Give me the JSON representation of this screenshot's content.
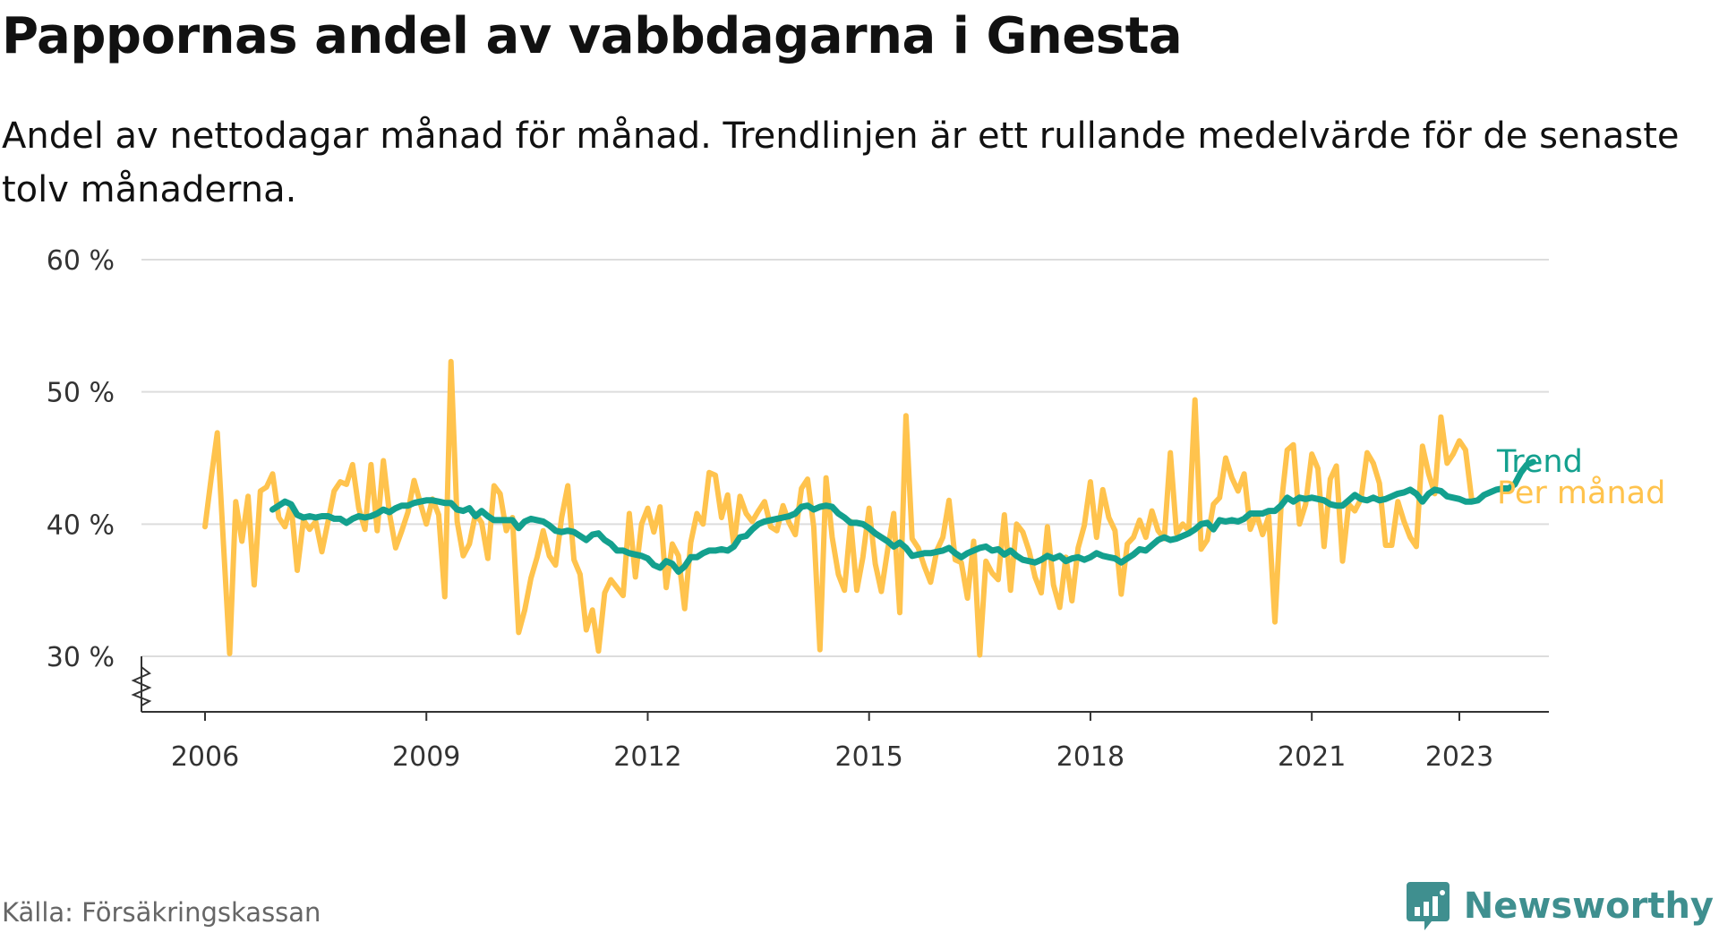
{
  "header": {
    "title": "Pappornas andel av vabbdagarna i Gnesta",
    "subtitle": "Andel av nettodagar månad för månad. Trendlinjen är ett rullande medelvärde för de senaste tolv månaderna."
  },
  "footer": {
    "source": "Källa: Försäkringskassan",
    "brand": "Newsworthy"
  },
  "colors": {
    "monthly": "#ffc34d",
    "trend": "#13a08e",
    "grid": "#dddddd",
    "axis": "#333333",
    "brand": "#3f8f8f"
  },
  "chart_data": {
    "type": "line",
    "ylim": [
      26,
      60
    ],
    "y_ticks": [
      {
        "value": 30,
        "label": "30 %"
      },
      {
        "value": 40,
        "label": "40 %"
      },
      {
        "value": 50,
        "label": "50 %"
      },
      {
        "value": 60,
        "label": "60 %"
      }
    ],
    "y_axis_break": true,
    "x_ticks": [
      {
        "value": 2006,
        "label": "2006"
      },
      {
        "value": 2009,
        "label": "2009"
      },
      {
        "value": 2012,
        "label": "2012"
      },
      {
        "value": 2015,
        "label": "2015"
      },
      {
        "value": 2018,
        "label": "2018"
      },
      {
        "value": 2021,
        "label": "2021"
      },
      {
        "value": 2023,
        "label": "2023"
      }
    ],
    "grid": true,
    "legend": "end-of-line labels, right",
    "series": [
      {
        "name": "Per månad",
        "key": "monthly",
        "start": "2006-01",
        "values": [
          39.8,
          43.5,
          46.9,
          38.5,
          30.2,
          41.7,
          38.7,
          42.1,
          35.4,
          42.5,
          42.8,
          43.8,
          40.5,
          39.8,
          41.5,
          36.5,
          40.3,
          39.6,
          40.2,
          37.9,
          40.2,
          42.5,
          43.2,
          43.0,
          44.5,
          41.2,
          39.6,
          44.5,
          39.5,
          44.8,
          40.8,
          38.2,
          39.5,
          40.9,
          43.3,
          41.6,
          40.0,
          41.9,
          40.7,
          34.5,
          52.3,
          40.2,
          37.6,
          38.5,
          40.8,
          40.1,
          37.4,
          42.9,
          42.3,
          39.5,
          40.5,
          31.8,
          33.5,
          35.9,
          37.5,
          39.5,
          37.6,
          36.9,
          40.5,
          42.9,
          37.3,
          36.2,
          32.0,
          33.5,
          30.4,
          34.8,
          35.8,
          35.2,
          34.6,
          40.8,
          36.0,
          40.0,
          41.2,
          39.4,
          41.3,
          35.2,
          38.5,
          37.6,
          33.6,
          38.6,
          40.8,
          40.0,
          43.9,
          43.7,
          40.5,
          42.2,
          38.4,
          42.1,
          40.8,
          40.2,
          41.0,
          41.7,
          39.8,
          39.5,
          41.4,
          40.1,
          39.2,
          42.7,
          43.4,
          39.8,
          30.5,
          43.5,
          39.0,
          36.2,
          35.0,
          40.2,
          35.0,
          37.5,
          41.2,
          37.0,
          34.9,
          38.0,
          40.8,
          33.3,
          48.2,
          38.9,
          38.2,
          36.8,
          35.6,
          38.0,
          39.0,
          41.8,
          37.3,
          37.1,
          34.4,
          38.7,
          30.1,
          37.2,
          36.3,
          35.8,
          40.7,
          35.0,
          40.0,
          39.4,
          38.0,
          36.0,
          34.8,
          39.8,
          35.4,
          33.7,
          37.5,
          34.2,
          38.2,
          39.9,
          43.2,
          39.0,
          42.6,
          40.5,
          39.5,
          34.7,
          38.5,
          39.0,
          40.3,
          39.0,
          41.0,
          39.5,
          38.9,
          45.4,
          39.3,
          40.0,
          39.5,
          49.4,
          38.1,
          38.8,
          41.5,
          42.0,
          45.0,
          43.5,
          42.5,
          43.8,
          39.6,
          40.8,
          39.2,
          40.6,
          32.6,
          41.3,
          45.6,
          46.0,
          40.0,
          41.5,
          45.3,
          44.2,
          38.3,
          43.4,
          44.4,
          37.2,
          41.5,
          41.0,
          41.9,
          45.4,
          44.6,
          43.1,
          38.4,
          38.4,
          41.7,
          40.2,
          39.0,
          38.3,
          45.9,
          43.8,
          42.3,
          48.1,
          44.6,
          45.3,
          46.3,
          45.6,
          41.9
        ]
      },
      {
        "name": "Trend",
        "key": "trend",
        "start": "2006-12",
        "values": [
          41.1,
          41.4,
          41.7,
          41.5,
          40.7,
          40.5,
          40.6,
          40.5,
          40.6,
          40.6,
          40.4,
          40.4,
          40.1,
          40.4,
          40.6,
          40.5,
          40.6,
          40.8,
          41.1,
          40.9,
          41.2,
          41.4,
          41.4,
          41.6,
          41.7,
          41.8,
          41.8,
          41.7,
          41.6,
          41.6,
          41.1,
          41.0,
          41.2,
          40.6,
          41.0,
          40.6,
          40.3,
          40.3,
          40.3,
          40.3,
          39.7,
          40.2,
          40.4,
          40.3,
          40.2,
          39.9,
          39.5,
          39.4,
          39.5,
          39.4,
          39.1,
          38.8,
          39.2,
          39.3,
          38.8,
          38.5,
          38.0,
          38.0,
          37.8,
          37.7,
          37.6,
          37.4,
          36.9,
          36.7,
          37.2,
          37.0,
          36.4,
          36.8,
          37.5,
          37.5,
          37.8,
          38.0,
          38.0,
          38.1,
          38.0,
          38.3,
          39.0,
          39.1,
          39.6,
          40.0,
          40.2,
          40.3,
          40.4,
          40.5,
          40.6,
          40.8,
          41.3,
          41.4,
          41.1,
          41.3,
          41.4,
          41.3,
          40.8,
          40.5,
          40.1,
          40.1,
          40.0,
          39.7,
          39.3,
          39.0,
          38.7,
          38.3,
          38.6,
          38.2,
          37.6,
          37.7,
          37.8,
          37.8,
          37.9,
          38.0,
          38.2,
          37.8,
          37.5,
          37.8,
          38.0,
          38.2,
          38.3,
          38.0,
          38.1,
          37.7,
          38.0,
          37.6,
          37.3,
          37.2,
          37.1,
          37.3,
          37.6,
          37.4,
          37.6,
          37.2,
          37.4,
          37.5,
          37.3,
          37.5,
          37.8,
          37.6,
          37.5,
          37.4,
          37.1,
          37.4,
          37.7,
          38.1,
          38.0,
          38.4,
          38.8,
          39.0,
          38.8,
          38.9,
          39.1,
          39.3,
          39.6,
          40.0,
          40.1,
          39.6,
          40.3,
          40.2,
          40.3,
          40.2,
          40.4,
          40.8,
          40.8,
          40.8,
          41.0,
          41.0,
          41.4,
          42.0,
          41.7,
          42.0,
          41.9,
          42.0,
          41.9,
          41.8,
          41.5,
          41.4,
          41.4,
          41.8,
          42.2,
          41.9,
          41.8,
          42.0,
          41.8,
          41.9,
          42.1,
          42.3,
          42.4,
          42.6,
          42.3,
          41.7,
          42.3,
          42.6,
          42.5,
          42.1,
          42.0,
          41.9,
          41.7,
          41.7,
          41.8,
          42.2,
          42.4,
          42.6,
          42.7,
          42.7,
          43.0,
          43.9,
          44.5,
          44.7
        ]
      }
    ],
    "series_labels": [
      {
        "key": "trend",
        "text": "Trend"
      },
      {
        "key": "monthly",
        "text": "Per månad"
      }
    ]
  }
}
